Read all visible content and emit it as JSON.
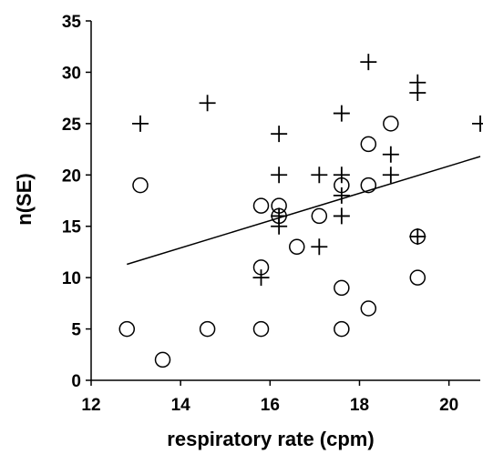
{
  "chart_data": {
    "type": "scatter",
    "title": "",
    "xlabel": "respiratory rate (cpm)",
    "ylabel": "n(SE)",
    "xlim": [
      12,
      20.7
    ],
    "ylim": [
      0,
      35
    ],
    "xticks": [
      12,
      14,
      16,
      18,
      20
    ],
    "yticks": [
      0,
      5,
      10,
      15,
      20,
      25,
      30,
      35
    ],
    "grid": false,
    "legend": "none",
    "colors": {
      "marker": "#000000",
      "line": "#000000"
    },
    "series": [
      {
        "marker": "cross",
        "points": [
          {
            "x": 13.1,
            "y": 25
          },
          {
            "x": 14.6,
            "y": 27
          },
          {
            "x": 15.8,
            "y": 10
          },
          {
            "x": 16.2,
            "y": 24
          },
          {
            "x": 16.2,
            "y": 20
          },
          {
            "x": 16.2,
            "y": 15
          },
          {
            "x": 16.2,
            "y": 16
          },
          {
            "x": 17.1,
            "y": 20
          },
          {
            "x": 17.1,
            "y": 13
          },
          {
            "x": 17.6,
            "y": 26
          },
          {
            "x": 17.6,
            "y": 20
          },
          {
            "x": 17.6,
            "y": 18
          },
          {
            "x": 17.6,
            "y": 16
          },
          {
            "x": 18.2,
            "y": 31
          },
          {
            "x": 18.7,
            "y": 22
          },
          {
            "x": 18.7,
            "y": 20
          },
          {
            "x": 19.3,
            "y": 29
          },
          {
            "x": 19.3,
            "y": 28
          },
          {
            "x": 19.3,
            "y": 14
          },
          {
            "x": 20.7,
            "y": 25
          }
        ]
      },
      {
        "marker": "circle",
        "points": [
          {
            "x": 12.8,
            "y": 5
          },
          {
            "x": 13.1,
            "y": 19
          },
          {
            "x": 13.6,
            "y": 2
          },
          {
            "x": 14.6,
            "y": 5
          },
          {
            "x": 15.8,
            "y": 17
          },
          {
            "x": 15.8,
            "y": 11
          },
          {
            "x": 15.8,
            "y": 5
          },
          {
            "x": 16.2,
            "y": 17
          },
          {
            "x": 16.2,
            "y": 16
          },
          {
            "x": 16.6,
            "y": 13
          },
          {
            "x": 17.1,
            "y": 16
          },
          {
            "x": 17.6,
            "y": 19
          },
          {
            "x": 17.6,
            "y": 9
          },
          {
            "x": 17.6,
            "y": 5
          },
          {
            "x": 18.2,
            "y": 23
          },
          {
            "x": 18.2,
            "y": 19
          },
          {
            "x": 18.2,
            "y": 7
          },
          {
            "x": 18.7,
            "y": 25
          },
          {
            "x": 19.3,
            "y": 14
          },
          {
            "x": 19.3,
            "y": 10
          }
        ]
      }
    ],
    "trendline": {
      "x": [
        12.8,
        20.7
      ],
      "y": [
        11.3,
        21.8
      ]
    }
  }
}
